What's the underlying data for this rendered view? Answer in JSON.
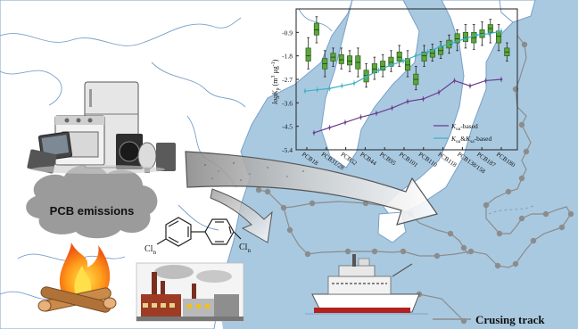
{
  "figure": {
    "emissions_label": "PCB emissions",
    "cruise_track_label": "Crusing track",
    "biphenyl_cl_left": "Cl",
    "biphenyl_cl_left_sub": "n",
    "biphenyl_cl_right": "Cl",
    "biphenyl_cl_right_sub": "n"
  },
  "colors": {
    "sea": "#a9c9e0",
    "land": "#ffffff",
    "coast": "#7aa0c8",
    "green_box": "#5aa83a",
    "purple_line": "#6a3d8f",
    "cyan_line": "#3fb2c2",
    "track": "#8c8c8c",
    "arrow": "#c8c8c8",
    "cloud": "#9b9b9b"
  },
  "chart_data": {
    "type": "box+line",
    "ylabel_parts": [
      "logK",
      "p",
      " (m",
      "3",
      " μg",
      "-1",
      ")"
    ],
    "ylim": [
      -5.4,
      0
    ],
    "yticks": [
      "-0.9",
      "-1.8",
      "-2.7",
      "-3.6",
      "-4.5",
      "-5.4"
    ],
    "ytick_values": [
      -0.9,
      -1.8,
      -2.7,
      -3.6,
      -4.5,
      -5.4
    ],
    "categories": [
      "PCB18",
      "PCB31/28",
      "PCB52",
      "PCB44",
      "PCB95",
      "PCB101",
      "PCB110",
      "PCB118",
      "PCB138/158",
      "PCB187",
      "PCB180"
    ],
    "boxes": [
      {
        "min": -2.3,
        "q1": -2.0,
        "median": -1.8,
        "q3": -1.5,
        "max": -1.1
      },
      {
        "min": -1.3,
        "q1": -1.0,
        "median": -0.8,
        "q3": -0.55,
        "max": -0.3
      },
      {
        "min": -2.6,
        "q1": -2.3,
        "median": -2.1,
        "q3": -1.9,
        "max": -1.6
      },
      {
        "min": -2.2,
        "q1": -2.0,
        "median": -1.85,
        "q3": -1.7,
        "max": -1.5
      },
      {
        "min": -2.3,
        "q1": -2.1,
        "median": -1.95,
        "q3": -1.75,
        "max": -1.5
      },
      {
        "min": -2.4,
        "q1": -2.15,
        "median": -2.0,
        "q3": -1.8,
        "max": -1.6
      },
      {
        "min": -2.6,
        "q1": -2.3,
        "median": -2.05,
        "q3": -1.8,
        "max": -1.5
      },
      {
        "min": -3.0,
        "q1": -2.8,
        "median": -2.55,
        "q3": -2.35,
        "max": -2.1
      },
      {
        "min": -2.7,
        "q1": -2.45,
        "median": -2.3,
        "q3": -2.1,
        "max": -1.85
      },
      {
        "min": -2.6,
        "q1": -2.35,
        "median": -2.2,
        "q3": -2.0,
        "max": -1.75
      },
      {
        "min": -2.4,
        "q1": -2.2,
        "median": -2.05,
        "q3": -1.85,
        "max": -1.6
      },
      {
        "min": -2.2,
        "q1": -2.0,
        "median": -1.85,
        "q3": -1.65,
        "max": -1.4
      },
      {
        "min": -2.6,
        "q1": -2.35,
        "median": -2.15,
        "q3": -1.9,
        "max": -1.6
      },
      {
        "min": -3.1,
        "q1": -2.9,
        "median": -2.7,
        "q3": -2.5,
        "max": -2.2
      },
      {
        "min": -2.2,
        "q1": -2.0,
        "median": -1.8,
        "q3": -1.65,
        "max": -1.4
      },
      {
        "min": -2.0,
        "q1": -1.85,
        "median": -1.7,
        "q3": -1.55,
        "max": -1.35
      },
      {
        "min": -1.9,
        "q1": -1.75,
        "median": -1.6,
        "q3": -1.45,
        "max": -1.25
      },
      {
        "min": -1.7,
        "q1": -1.5,
        "median": -1.35,
        "q3": -1.2,
        "max": -1.0
      },
      {
        "min": -1.6,
        "q1": -1.3,
        "median": -1.15,
        "q3": -0.95,
        "max": -0.8
      },
      {
        "min": -1.5,
        "q1": -1.25,
        "median": -1.1,
        "q3": -0.9,
        "max": -0.6
      },
      {
        "min": -1.55,
        "q1": -1.3,
        "median": -1.1,
        "q3": -0.9,
        "max": -0.6
      },
      {
        "min": -1.4,
        "q1": -1.1,
        "median": -0.95,
        "q3": -0.8,
        "max": -0.5
      },
      {
        "min": -1.3,
        "q1": -0.9,
        "median": -0.75,
        "q3": -0.6,
        "max": -0.4
      },
      {
        "min": -1.6,
        "q1": -1.3,
        "median": -1.05,
        "q3": -0.85,
        "max": -0.6
      },
      {
        "min": -2.0,
        "q1": -1.8,
        "median": -1.65,
        "q3": -1.5,
        "max": -1.3
      }
    ],
    "series": [
      {
        "name_parts": [
          "K",
          "oa",
          "-based"
        ],
        "values": [
          -4.75,
          -4.55,
          -4.35,
          -4.15,
          -4.0,
          -3.8,
          -3.55,
          -3.45,
          -3.2,
          -2.75,
          -2.95,
          -2.75,
          -2.7
        ]
      },
      {
        "name_parts": [
          "K",
          "oa",
          "&",
          "K",
          "sa",
          "-based"
        ],
        "values": [
          -3.15,
          -3.1,
          -3.05,
          -2.95,
          -2.85,
          -2.6,
          -2.35,
          -2.15,
          -2.0,
          -1.8,
          -1.65,
          -1.45,
          -1.3,
          -1.15,
          -1.0,
          -0.95,
          -0.85
        ]
      }
    ]
  }
}
